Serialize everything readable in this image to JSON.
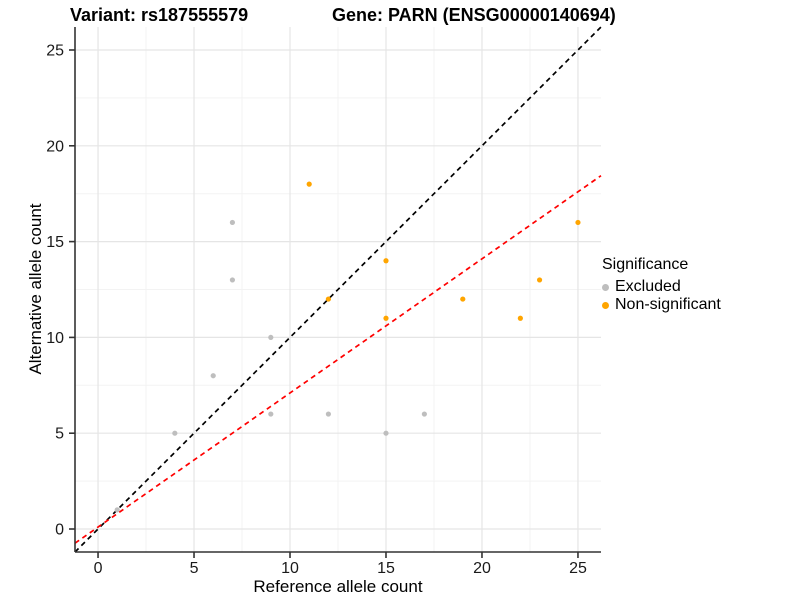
{
  "titles": {
    "variant": "Variant: rs187555579",
    "gene": "Gene: PARN (ENSG00000140694)"
  },
  "axes": {
    "x_label": "Reference allele count",
    "y_label": "Alternative allele count"
  },
  "legend": {
    "title": "Significance",
    "items": [
      {
        "label": "Excluded",
        "color": "#BEBEBE"
      },
      {
        "label": "Non-significant",
        "color": "#FFA500"
      }
    ]
  },
  "chart_data": {
    "type": "scatter",
    "title_left": "Variant: rs187555579",
    "title_right": "Gene: PARN (ENSG00000140694)",
    "xlabel": "Reference allele count",
    "ylabel": "Alternative allele count",
    "xlim": [
      -1.2,
      26.2
    ],
    "ylim": [
      -1.2,
      26.2
    ],
    "x_ticks": [
      0,
      5,
      10,
      15,
      20,
      25
    ],
    "y_ticks": [
      0,
      5,
      10,
      15,
      20,
      25
    ],
    "x_minor_ticks": [
      2.5,
      7.5,
      12.5,
      17.5,
      22.5
    ],
    "y_minor_ticks": [
      2.5,
      7.5,
      12.5,
      17.5,
      22.5
    ],
    "grid": {
      "major_color": "#E5E5E5",
      "minor_color": "#F3F3F3"
    },
    "axis_color": "#333333",
    "tick_label_color": "#1a1a1a",
    "series": [
      {
        "name": "Excluded",
        "color": "#BEBEBE",
        "points": [
          [
            1,
            1
          ],
          [
            4,
            5
          ],
          [
            6,
            8
          ],
          [
            7,
            13
          ],
          [
            7,
            16
          ],
          [
            9,
            6
          ],
          [
            9,
            10
          ],
          [
            12,
            6
          ],
          [
            15,
            5
          ],
          [
            17,
            6
          ]
        ]
      },
      {
        "name": "Non-significant",
        "color": "#FFA500",
        "points": [
          [
            11,
            18
          ],
          [
            12,
            12
          ],
          [
            15,
            11
          ],
          [
            15,
            14
          ],
          [
            19,
            12
          ],
          [
            22,
            11
          ],
          [
            23,
            13
          ],
          [
            25,
            16
          ]
        ]
      }
    ],
    "lines": [
      {
        "name": "identity-line",
        "color": "#000000",
        "dashed": true,
        "slope": 1.0,
        "intercept": 0.0
      },
      {
        "name": "fit-line",
        "color": "#FF0000",
        "dashed": true,
        "slope": 0.7,
        "intercept": 0.1
      }
    ],
    "legend_position": "right"
  }
}
